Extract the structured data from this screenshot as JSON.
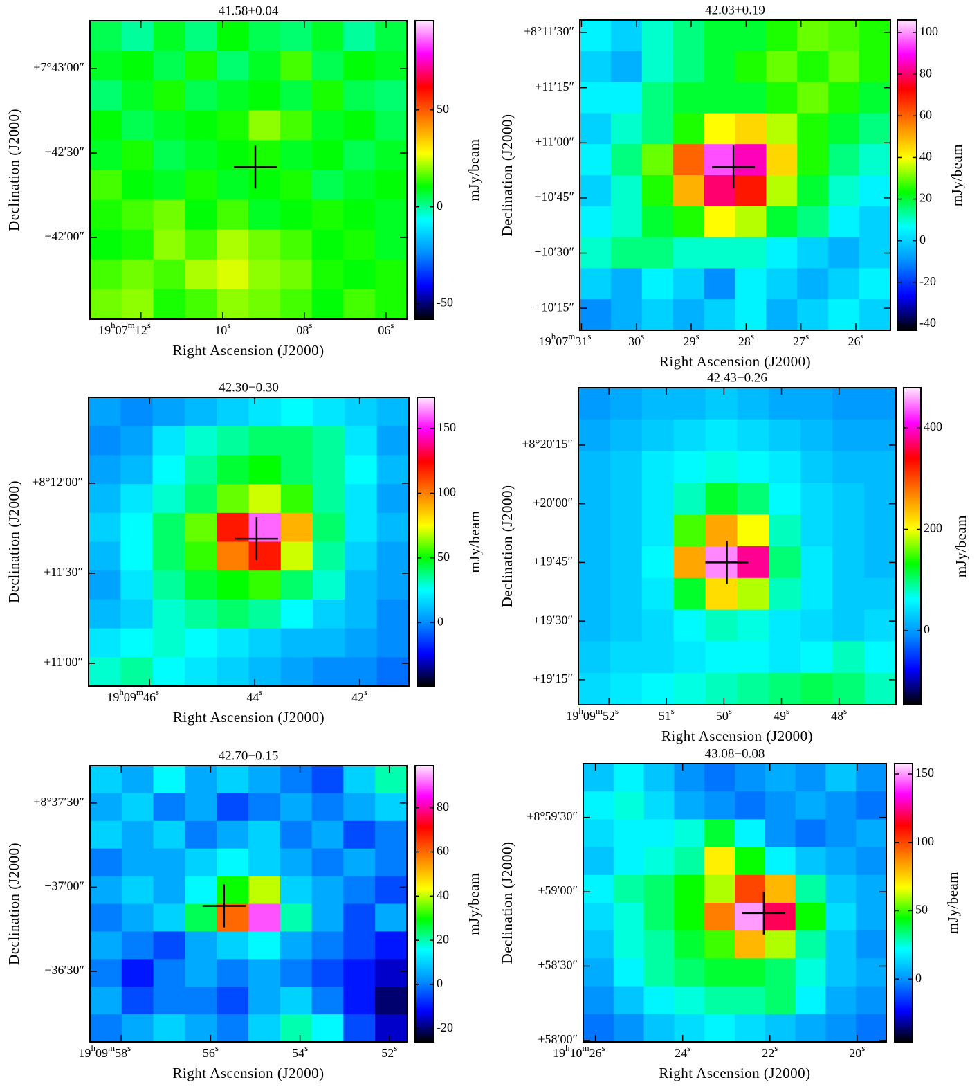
{
  "chart_data": [
    {
      "type": "heatmap",
      "title": "41.58+0.04",
      "xlabel": "Right Ascension (J2000)",
      "ylabel": "Declination (J2000)",
      "colorbar_label": "mJy/beam",
      "xlim": [
        13.25,
        5.49
      ],
      "ylim": [
        2491,
        2597
      ],
      "zlim": [
        -58,
        96
      ],
      "xticks": [
        {
          "value": 12,
          "label": "19h07m12s"
        },
        {
          "value": 10,
          "label": "10s"
        },
        {
          "value": 8,
          "label": "08s"
        },
        {
          "value": 6,
          "label": "06s"
        }
      ],
      "yticks": [
        {
          "value": 2580,
          "label": "+7°43′00″"
        },
        {
          "value": 2550,
          "label": "+42′30″"
        },
        {
          "value": 2520,
          "label": "+42′00″"
        }
      ],
      "zticks": [
        -50,
        0,
        50
      ],
      "colormap": [
        "#000000",
        "#0000ff",
        "#0090ff",
        "#00ffff",
        "#00ff00",
        "#ffff00",
        "#ff8000",
        "#ff0000",
        "#ff00ff",
        "#ffe8ff"
      ],
      "cross": {
        "x": 9.2,
        "y": 2545
      },
      "z": [
        [
          5,
          0,
          8,
          2,
          10,
          5,
          3,
          8,
          0,
          6
        ],
        [
          8,
          10,
          5,
          12,
          3,
          8,
          15,
          5,
          10,
          8
        ],
        [
          3,
          8,
          12,
          5,
          8,
          10,
          6,
          12,
          5,
          3
        ],
        [
          10,
          5,
          8,
          10,
          12,
          20,
          15,
          8,
          10,
          5
        ],
        [
          8,
          12,
          5,
          8,
          10,
          12,
          8,
          10,
          5,
          8
        ],
        [
          15,
          10,
          8,
          12,
          8,
          10,
          12,
          5,
          8,
          10
        ],
        [
          12,
          15,
          18,
          10,
          15,
          8,
          10,
          12,
          10,
          8
        ],
        [
          10,
          12,
          20,
          15,
          22,
          18,
          15,
          10,
          12,
          8
        ],
        [
          15,
          18,
          15,
          22,
          25,
          20,
          18,
          12,
          10,
          12
        ],
        [
          18,
          20,
          12,
          15,
          20,
          18,
          15,
          10,
          15,
          12
        ]
      ]
    },
    {
      "type": "heatmap",
      "title": "42.03+0.19",
      "xlabel": "Right Ascension (J2000)",
      "ylabel": "Declination (J2000)",
      "colorbar_label": "mJy/beam",
      "xlim": [
        31.03,
        25.37
      ],
      "ylim": [
        609,
        693.4
      ],
      "zlim": [
        -43,
        106
      ],
      "xticks": [
        {
          "value": 31,
          "label": "19h07m31s"
        },
        {
          "value": 30,
          "label": "30s"
        },
        {
          "value": 29,
          "label": "29s"
        },
        {
          "value": 28,
          "label": "28s"
        },
        {
          "value": 27,
          "label": "27s"
        },
        {
          "value": 26,
          "label": "26s"
        }
      ],
      "yticks": [
        {
          "value": 690,
          "label": "+8°11′30″"
        },
        {
          "value": 675,
          "label": "+11′15″"
        },
        {
          "value": 660,
          "label": "+11′00″"
        },
        {
          "value": 645,
          "label": "+10′45″"
        },
        {
          "value": 630,
          "label": "+10′30″"
        },
        {
          "value": 615,
          "label": "+10′15″"
        }
      ],
      "zticks": [
        -40,
        -20,
        0,
        20,
        40,
        60,
        80,
        100
      ],
      "colormap": [
        "#000000",
        "#0000ff",
        "#0090ff",
        "#00ffff",
        "#00ff00",
        "#ffff00",
        "#ff8000",
        "#ff0000",
        "#ff00ff",
        "#ffe8ff"
      ],
      "cross": {
        "x": 28.23,
        "y": 653.4
      },
      "z": [
        [
          5,
          0,
          10,
          15,
          20,
          20,
          25,
          30,
          28,
          25
        ],
        [
          0,
          -5,
          10,
          15,
          20,
          25,
          30,
          25,
          30,
          25
        ],
        [
          5,
          5,
          15,
          20,
          20,
          20,
          25,
          30,
          25,
          20
        ],
        [
          0,
          10,
          15,
          25,
          40,
          45,
          35,
          25,
          20,
          15
        ],
        [
          5,
          15,
          30,
          60,
          95,
          85,
          45,
          25,
          15,
          10
        ],
        [
          0,
          10,
          25,
          50,
          80,
          70,
          35,
          20,
          10,
          5
        ],
        [
          5,
          10,
          20,
          25,
          40,
          35,
          20,
          15,
          5,
          0
        ],
        [
          10,
          15,
          15,
          10,
          10,
          10,
          5,
          0,
          -5,
          0
        ],
        [
          0,
          -5,
          5,
          0,
          -10,
          5,
          0,
          -5,
          0,
          5
        ],
        [
          -10,
          -5,
          0,
          -5,
          0,
          5,
          -5,
          0,
          5,
          0
        ]
      ]
    },
    {
      "type": "heatmap",
      "title": "42.30−0.30",
      "xlabel": "Right Ascension (J2000)",
      "ylabel": "Declination (J2000)",
      "colorbar_label": "mJy/beam",
      "xlim": [
        47.16,
        41.06
      ],
      "ylim": [
        652.4,
        748.6
      ],
      "zlim": [
        -49,
        174
      ],
      "xticks": [
        {
          "value": 46,
          "label": "19h09m46s"
        },
        {
          "value": 44,
          "label": "44s"
        },
        {
          "value": 42,
          "label": "42s"
        }
      ],
      "yticks": [
        {
          "value": 720,
          "label": "+8°12′00″"
        },
        {
          "value": 690,
          "label": "+11′30″"
        },
        {
          "value": 660,
          "label": "+11′00″"
        }
      ],
      "zticks": [
        0,
        50,
        100,
        150
      ],
      "colormap": [
        "#000000",
        "#0000ff",
        "#0090ff",
        "#00ffff",
        "#00ff00",
        "#ffff00",
        "#ff8000",
        "#ff0000",
        "#ff00ff",
        "#ffe8ff"
      ],
      "cross": {
        "x": 43.96,
        "y": 701.5
      },
      "z": [
        [
          5,
          0,
          5,
          10,
          15,
          20,
          25,
          20,
          15,
          10
        ],
        [
          0,
          5,
          20,
          30,
          35,
          40,
          40,
          35,
          20,
          5
        ],
        [
          5,
          10,
          25,
          35,
          45,
          50,
          40,
          35,
          25,
          10
        ],
        [
          10,
          20,
          30,
          40,
          60,
          70,
          55,
          35,
          20,
          5
        ],
        [
          15,
          25,
          40,
          60,
          120,
          160,
          90,
          40,
          20,
          10
        ],
        [
          10,
          25,
          40,
          55,
          100,
          120,
          70,
          35,
          15,
          5
        ],
        [
          5,
          20,
          35,
          45,
          50,
          55,
          40,
          30,
          10,
          5
        ],
        [
          10,
          15,
          30,
          35,
          40,
          35,
          25,
          15,
          10,
          0
        ],
        [
          20,
          25,
          30,
          25,
          20,
          15,
          10,
          10,
          5,
          0
        ],
        [
          30,
          35,
          25,
          20,
          15,
          10,
          5,
          0,
          0,
          -5
        ]
      ]
    },
    {
      "type": "heatmap",
      "title": "42.43−0.26",
      "xlabel": "Right Ascension (J2000)",
      "ylabel": "Declination (J2000)",
      "colorbar_label": "mJy/beam",
      "xlim": [
        52.53,
        47.01
      ],
      "ylim": [
        1148.6,
        1229.7
      ],
      "zlim": [
        -146,
        479
      ],
      "xticks": [
        {
          "value": 52,
          "label": "19h09m52s"
        },
        {
          "value": 51,
          "label": "51s"
        },
        {
          "value": 50,
          "label": "50s"
        },
        {
          "value": 49,
          "label": "49s"
        },
        {
          "value": 48,
          "label": "48s"
        }
      ],
      "yticks": [
        {
          "value": 1215,
          "label": "+8°20′15″"
        },
        {
          "value": 1200,
          "label": "+20′00″"
        },
        {
          "value": 1185,
          "label": "+19′45″"
        },
        {
          "value": 1170,
          "label": "+19′30″"
        },
        {
          "value": 1155,
          "label": "+19′15″"
        }
      ],
      "zticks": [
        0,
        200,
        400
      ],
      "colormap": [
        "#000000",
        "#0000ff",
        "#0090ff",
        "#00ffff",
        "#00ff00",
        "#ffff00",
        "#ff8000",
        "#ff0000",
        "#ff00ff",
        "#ffe8ff"
      ],
      "cross": {
        "x": 49.95,
        "y": 1185
      },
      "z": [
        [
          0,
          10,
          20,
          20,
          30,
          20,
          10,
          10,
          0,
          0
        ],
        [
          10,
          20,
          30,
          40,
          50,
          40,
          30,
          20,
          10,
          10
        ],
        [
          20,
          30,
          50,
          60,
          70,
          60,
          50,
          30,
          20,
          20
        ],
        [
          20,
          30,
          50,
          80,
          120,
          100,
          60,
          40,
          30,
          20
        ],
        [
          20,
          30,
          50,
          150,
          250,
          200,
          80,
          40,
          30,
          20
        ],
        [
          20,
          30,
          60,
          250,
          450,
          380,
          100,
          50,
          30,
          20
        ],
        [
          20,
          30,
          50,
          120,
          220,
          180,
          80,
          50,
          30,
          30
        ],
        [
          20,
          30,
          40,
          60,
          80,
          70,
          50,
          40,
          30,
          40
        ],
        [
          30,
          40,
          40,
          50,
          60,
          60,
          50,
          60,
          80,
          60
        ],
        [
          40,
          50,
          60,
          70,
          80,
          90,
          100,
          110,
          100,
          80
        ]
      ]
    },
    {
      "type": "heatmap",
      "title": "42.70−0.15",
      "xlabel": "Right Ascension (J2000)",
      "ylabel": "Declination (J2000)",
      "colorbar_label": "mJy/beam",
      "xlim": [
        58.7,
        51.61
      ],
      "ylim": [
        2164.8,
        2263.3
      ],
      "zlim": [
        -26,
        99
      ],
      "xticks": [
        {
          "value": 58,
          "label": "19h09m58s"
        },
        {
          "value": 56,
          "label": "56s"
        },
        {
          "value": 54,
          "label": "54s"
        },
        {
          "value": 52,
          "label": "52s"
        }
      ],
      "yticks": [
        {
          "value": 2250,
          "label": "+8°37′30″"
        },
        {
          "value": 2220,
          "label": "+37′00″"
        },
        {
          "value": 2190,
          "label": "+36′30″"
        }
      ],
      "zticks": [
        -20,
        0,
        20,
        40,
        60,
        80
      ],
      "colormap": [
        "#000000",
        "#0000ff",
        "#0090ff",
        "#00ffff",
        "#00ff00",
        "#ffff00",
        "#ff8000",
        "#ff0000",
        "#ff00ff",
        "#ffe8ff"
      ],
      "cross": {
        "x": 55.7,
        "y": 2213.3
      },
      "z": [
        [
          10,
          5,
          15,
          5,
          10,
          5,
          0,
          -5,
          10,
          20
        ],
        [
          5,
          10,
          0,
          5,
          -5,
          0,
          5,
          0,
          5,
          10
        ],
        [
          10,
          5,
          10,
          0,
          5,
          10,
          0,
          5,
          -5,
          0
        ],
        [
          0,
          5,
          5,
          10,
          15,
          10,
          5,
          0,
          5,
          0
        ],
        [
          5,
          10,
          5,
          15,
          30,
          40,
          10,
          5,
          0,
          -5
        ],
        [
          0,
          5,
          10,
          25,
          60,
          90,
          20,
          5,
          -5,
          5
        ],
        [
          5,
          0,
          -5,
          5,
          10,
          15,
          5,
          0,
          -5,
          -10
        ],
        [
          0,
          -10,
          0,
          5,
          0,
          5,
          0,
          -5,
          -10,
          -15
        ],
        [
          5,
          -5,
          0,
          0,
          -5,
          5,
          10,
          0,
          -10,
          -20
        ],
        [
          0,
          5,
          10,
          5,
          0,
          10,
          20,
          15,
          -5,
          -15
        ]
      ]
    },
    {
      "type": "heatmap",
      "title": "43.08−0.08",
      "xlabel": "Right Ascension (J2000)",
      "ylabel": "Declination (J2000)",
      "colorbar_label": "mJy/beam",
      "xlim": [
        26.28,
        19.33
      ],
      "ylim": [
        3479.4,
        3591.7
      ],
      "zlim": [
        -46,
        157.6
      ],
      "xticks": [
        {
          "value": 26,
          "label": "19h10m26s"
        },
        {
          "value": 24,
          "label": "24s"
        },
        {
          "value": 22,
          "label": "22s"
        },
        {
          "value": 20,
          "label": "20s"
        }
      ],
      "yticks": [
        {
          "value": 3570,
          "label": "+8°59′30″"
        },
        {
          "value": 3540,
          "label": "+59′00″"
        },
        {
          "value": 3510,
          "label": "+58′30″"
        },
        {
          "value": 3480,
          "label": "+58′00″"
        }
      ],
      "zticks": [
        0,
        50,
        100,
        150
      ],
      "colormap": [
        "#000000",
        "#0000ff",
        "#0090ff",
        "#00ffff",
        "#00ff00",
        "#ffff00",
        "#ff8000",
        "#ff0000",
        "#ff00ff",
        "#ffe8ff"
      ],
      "cross": {
        "x": 22.14,
        "y": 3531.4
      },
      "z": [
        [
          10,
          20,
          10,
          0,
          -5,
          0,
          5,
          0,
          10,
          0
        ],
        [
          20,
          25,
          15,
          5,
          0,
          -5,
          0,
          5,
          0,
          -5
        ],
        [
          15,
          20,
          20,
          25,
          40,
          20,
          0,
          -5,
          0,
          5
        ],
        [
          10,
          20,
          25,
          30,
          70,
          45,
          20,
          10,
          5,
          0
        ],
        [
          20,
          30,
          35,
          45,
          60,
          100,
          80,
          30,
          10,
          5
        ],
        [
          15,
          25,
          35,
          45,
          90,
          150,
          120,
          45,
          15,
          5
        ],
        [
          10,
          25,
          30,
          40,
          50,
          80,
          60,
          30,
          10,
          0
        ],
        [
          5,
          20,
          30,
          35,
          40,
          40,
          35,
          25,
          10,
          5
        ],
        [
          0,
          10,
          20,
          25,
          30,
          30,
          35,
          20,
          5,
          0
        ],
        [
          -5,
          0,
          10,
          15,
          20,
          15,
          10,
          5,
          0,
          -5
        ]
      ]
    }
  ]
}
